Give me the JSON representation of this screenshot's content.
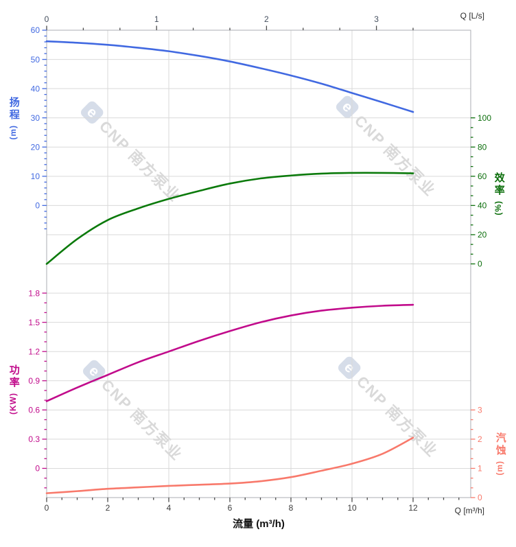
{
  "watermark": {
    "logo_glyph": "e",
    "text": "CNP 南方泵业"
  },
  "corner_labels": {
    "top_right": "Q [L/s]",
    "bottom_right": "Q [m³/h]"
  },
  "bottom_title": "流量 (m³/h)",
  "axes": {
    "top": {
      "label": "Q [L/s]",
      "ticks": [
        "0",
        "1",
        "2",
        "3"
      ],
      "color": "#454f5e"
    },
    "bottom": {
      "label": "Q [m³/h]",
      "title": "流量 (m³/h)",
      "ticks": [
        "0",
        "2",
        "4",
        "6",
        "8",
        "10",
        "12"
      ],
      "color": "#3c3c3c"
    },
    "head": {
      "title": "扬程",
      "unit": "(m)",
      "ticks": [
        "60",
        "50",
        "40",
        "30",
        "20",
        "10",
        "0"
      ],
      "color": "#4169e1"
    },
    "efficiency": {
      "title": "效率",
      "unit": "(%)",
      "ticks": [
        "100",
        "80",
        "60",
        "40",
        "20",
        "0"
      ],
      "color": "#0b6e0b"
    },
    "power": {
      "title": "功率",
      "unit": "(KW)",
      "ticks": [
        "1.8",
        "1.5",
        "1.2",
        "0.9",
        "0.6",
        "0.3",
        "0"
      ],
      "color": "#c10b8b"
    },
    "npsh": {
      "title": "汽蚀",
      "unit": "(m)",
      "ticks": [
        "3",
        "2",
        "1",
        "0"
      ],
      "color": "#f8796b"
    }
  },
  "chart_data": {
    "type": "line",
    "title": "",
    "xlabel": "流量 (m³/h)",
    "x_unit_bottom": "m³/h",
    "x_unit_top": "L/s",
    "x_range_m3h": [
      0,
      13.9
    ],
    "x_ticks_m3h": [
      0,
      2,
      4,
      6,
      8,
      10,
      12
    ],
    "x_ticks_top_Ls": [
      0,
      1,
      2,
      3
    ],
    "grid": true,
    "legend": "none",
    "x_flow_m3h": [
      0,
      1,
      2,
      3,
      4,
      5,
      6,
      7,
      8,
      9,
      10,
      11,
      12
    ],
    "series": [
      {
        "name": "head",
        "label_cn": "扬程",
        "unit": "m",
        "axis": "head",
        "axis_range": [
          0,
          60
        ],
        "axis_side": "left-top",
        "color": "#4169e1",
        "values": [
          56.2,
          55.7,
          55.0,
          54.0,
          52.8,
          51.2,
          49.3,
          47.0,
          44.5,
          41.7,
          38.5,
          35.3,
          32.0
        ]
      },
      {
        "name": "efficiency",
        "label_cn": "效率",
        "unit": "%",
        "axis": "efficiency",
        "axis_range": [
          0,
          100
        ],
        "axis_side": "right-top",
        "color": "#0b7a0b",
        "values": [
          0,
          17,
          30,
          38,
          44.5,
          50,
          55,
          58.5,
          60.5,
          61.8,
          62.3,
          62.3,
          62.0
        ]
      },
      {
        "name": "power",
        "label_cn": "功率",
        "unit": "kW",
        "axis": "power",
        "axis_range": [
          0,
          1.8
        ],
        "axis_side": "left-bottom",
        "color": "#c10b8b",
        "values": [
          0.69,
          0.83,
          0.96,
          1.09,
          1.2,
          1.31,
          1.41,
          1.5,
          1.57,
          1.62,
          1.65,
          1.67,
          1.68
        ]
      },
      {
        "name": "npsh",
        "label_cn": "汽蚀",
        "unit": "m",
        "axis": "npsh",
        "axis_range": [
          0,
          3
        ],
        "axis_side": "right-bottom",
        "color": "#f8796b",
        "values": [
          0.15,
          0.22,
          0.3,
          0.35,
          0.4,
          0.44,
          0.48,
          0.56,
          0.7,
          0.92,
          1.16,
          1.5,
          2.05
        ]
      }
    ]
  }
}
